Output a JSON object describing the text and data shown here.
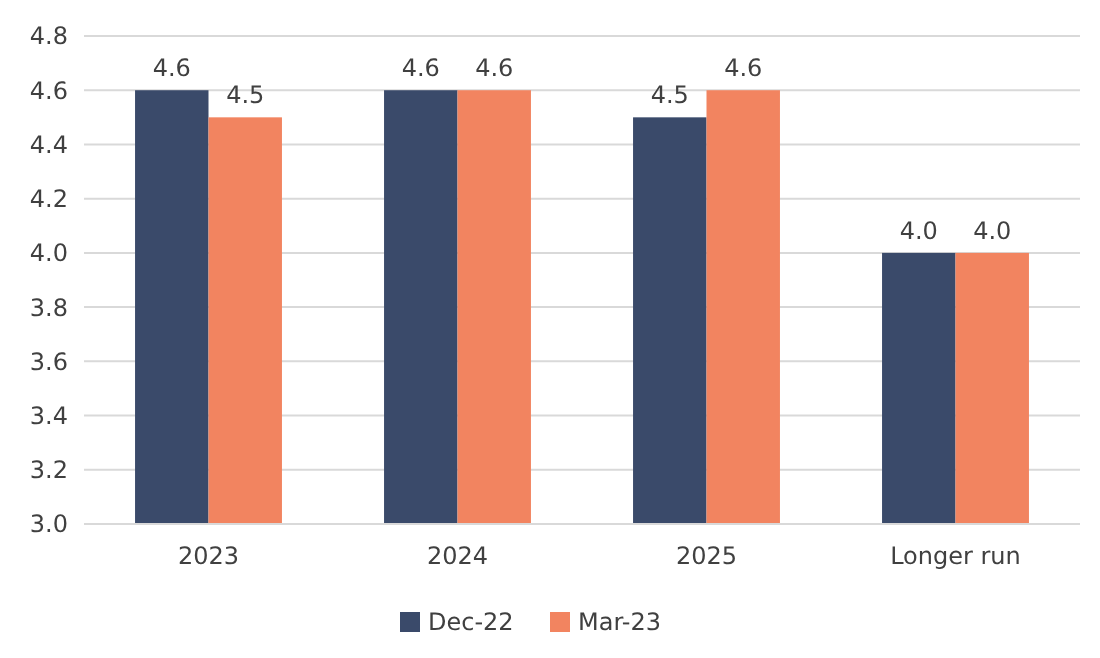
{
  "chart_data": {
    "type": "bar",
    "categories": [
      "2023",
      "2024",
      "2025",
      "Longer run"
    ],
    "series": [
      {
        "name": "Dec-22",
        "color": "#3a4a6a",
        "values": [
          4.6,
          4.6,
          4.5,
          4.0
        ],
        "value_labels": [
          "4.6",
          "4.6",
          "4.5",
          "4.0"
        ]
      },
      {
        "name": "Mar-23",
        "color": "#f28460",
        "values": [
          4.5,
          4.6,
          4.6,
          4.0
        ],
        "value_labels": [
          "4.5",
          "4.6",
          "4.6",
          "4.0"
        ]
      }
    ],
    "ylim": [
      3.0,
      4.8
    ],
    "yticks": [
      {
        "value": 3.0,
        "label": "3.0"
      },
      {
        "value": 3.2,
        "label": "3.2"
      },
      {
        "value": 3.4,
        "label": "3.4"
      },
      {
        "value": 3.6,
        "label": "3.6"
      },
      {
        "value": 3.8,
        "label": "3.8"
      },
      {
        "value": 4.0,
        "label": "4.0"
      },
      {
        "value": 4.2,
        "label": "4.2"
      },
      {
        "value": 4.4,
        "label": "4.4"
      },
      {
        "value": 4.6,
        "label": "4.6"
      },
      {
        "value": 4.8,
        "label": "4.8"
      }
    ],
    "grid": "y",
    "legend": "bottom"
  }
}
